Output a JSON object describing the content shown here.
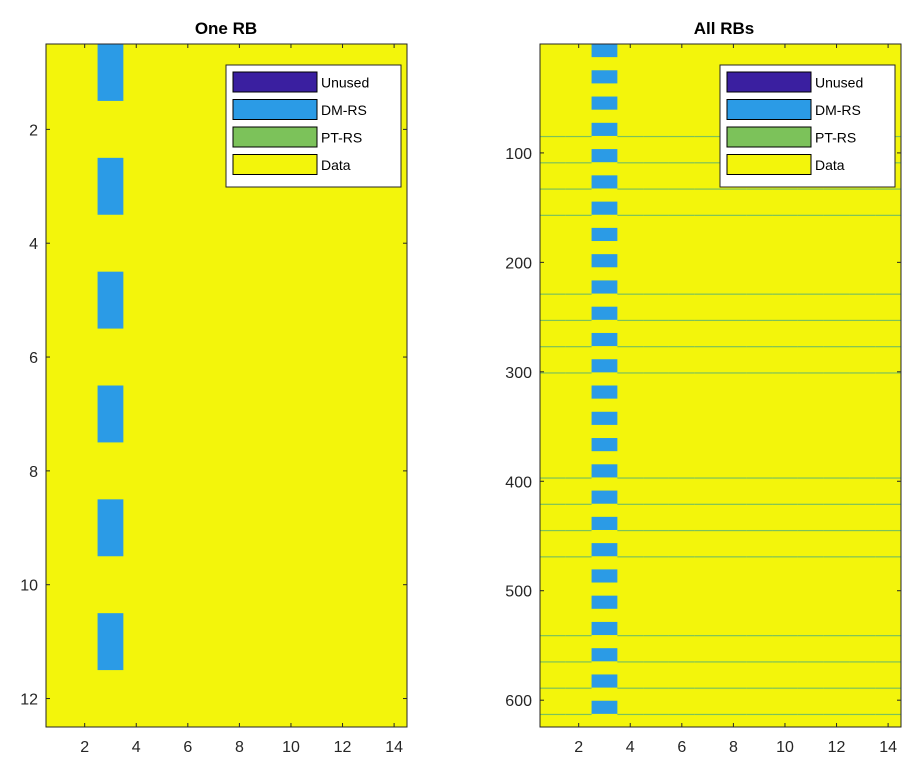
{
  "colors": {
    "unused": "#3a1fa0",
    "dmrs": "#2b9be6",
    "ptrs": "#7cc25a",
    "data": "#f3f50b",
    "axis": "#262626"
  },
  "chart_data": [
    {
      "type": "heatmap",
      "title": "One RB",
      "xlabel": "",
      "ylabel": "",
      "xlim": [
        0.5,
        14.5
      ],
      "ylim": [
        0.5,
        12.5
      ],
      "y_reversed": true,
      "x_ticks": [
        2,
        4,
        6,
        8,
        10,
        12,
        14
      ],
      "y_ticks": [
        2,
        4,
        6,
        8,
        10,
        12
      ],
      "legend": {
        "placement": "top-right",
        "entries": [
          {
            "label": "Unused",
            "color_key": "unused"
          },
          {
            "label": "DM-RS",
            "color_key": "dmrs"
          },
          {
            "label": "PT-RS",
            "color_key": "ptrs"
          },
          {
            "label": "Data",
            "color_key": "data"
          }
        ]
      },
      "background": "Data",
      "dmrs_symbol": 3,
      "dmrs_subcarriers": [
        1,
        3,
        5,
        7,
        9,
        11
      ],
      "ptrs_symbols": [],
      "ptrs_subcarriers": []
    },
    {
      "type": "heatmap",
      "title": "All RBs",
      "xlabel": "",
      "ylabel": "",
      "xlim": [
        0.5,
        14.5
      ],
      "ylim": [
        0.5,
        624.5
      ],
      "y_reversed": true,
      "x_ticks": [
        2,
        4,
        6,
        8,
        10,
        12,
        14
      ],
      "y_ticks": [
        100,
        200,
        300,
        400,
        500,
        600
      ],
      "legend": {
        "placement": "top-right",
        "entries": [
          {
            "label": "Unused",
            "color_key": "unused"
          },
          {
            "label": "DM-RS",
            "color_key": "dmrs"
          },
          {
            "label": "PT-RS",
            "color_key": "ptrs"
          },
          {
            "label": "Data",
            "color_key": "data"
          }
        ]
      },
      "background": "Data",
      "dmrs_symbol": 3,
      "dmrs_blocks": [
        [
          1,
          12
        ],
        [
          25,
          36
        ],
        [
          49,
          60
        ],
        [
          73,
          84
        ],
        [
          97,
          108
        ],
        [
          121,
          132
        ],
        [
          145,
          156
        ],
        [
          169,
          180
        ],
        [
          193,
          204
        ],
        [
          217,
          228
        ],
        [
          241,
          252
        ],
        [
          265,
          276
        ],
        [
          289,
          300
        ],
        [
          313,
          324
        ],
        [
          337,
          348
        ],
        [
          361,
          372
        ],
        [
          385,
          396
        ],
        [
          409,
          420
        ],
        [
          433,
          444
        ],
        [
          457,
          468
        ],
        [
          481,
          492
        ],
        [
          505,
          516
        ],
        [
          529,
          540
        ],
        [
          553,
          564
        ],
        [
          577,
          588
        ],
        [
          601,
          612
        ]
      ],
      "ptrs_symbols": [
        1,
        2,
        4,
        5,
        6,
        7,
        8,
        9,
        10,
        11,
        12,
        13,
        14
      ],
      "ptrs_subcarriers": [
        85,
        109,
        133,
        157,
        229,
        253,
        277,
        301,
        397,
        421,
        445,
        469,
        541,
        565,
        589,
        613
      ]
    }
  ]
}
